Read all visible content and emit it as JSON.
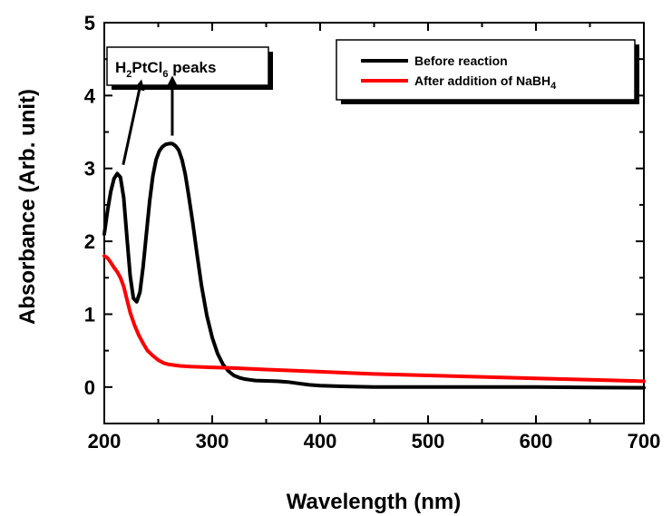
{
  "chart_data": {
    "type": "line",
    "xlabel": "Wavelength (nm)",
    "ylabel": "Absorbance (Arb. unit)",
    "xlim": [
      200,
      700
    ],
    "ylim": [
      -0.5,
      5
    ],
    "xticks": [
      200,
      300,
      400,
      500,
      600,
      700
    ],
    "yticks": [
      0,
      1,
      2,
      3,
      4,
      5
    ],
    "grid": false,
    "legend_position": "top-right",
    "series": [
      {
        "name": "Before reaction",
        "color": "#000000",
        "x": [
          200,
          203,
          206,
          209,
          212,
          215,
          218,
          221,
          224,
          227,
          230,
          233,
          236,
          239,
          242,
          245,
          248,
          251,
          254,
          257,
          260,
          263,
          266,
          269,
          272,
          275,
          278,
          282,
          286,
          290,
          295,
          300,
          305,
          310,
          315,
          320,
          325,
          330,
          335,
          340,
          350,
          360,
          370,
          380,
          390,
          400,
          420,
          450,
          500,
          550,
          600,
          650,
          700
        ],
        "y": [
          2.1,
          2.42,
          2.68,
          2.86,
          2.93,
          2.88,
          2.6,
          2.05,
          1.52,
          1.22,
          1.17,
          1.3,
          1.65,
          2.1,
          2.55,
          2.9,
          3.12,
          3.24,
          3.3,
          3.33,
          3.34,
          3.34,
          3.31,
          3.25,
          3.12,
          2.92,
          2.65,
          2.25,
          1.82,
          1.4,
          0.98,
          0.68,
          0.46,
          0.31,
          0.22,
          0.16,
          0.13,
          0.11,
          0.1,
          0.09,
          0.085,
          0.08,
          0.07,
          0.05,
          0.03,
          0.02,
          0.01,
          0.0,
          0.0,
          0.0,
          0.0,
          -0.005,
          -0.01
        ]
      },
      {
        "name": "After addition of NaBH",
        "name_subscript": "4",
        "color": "#ff0000",
        "x": [
          200,
          203,
          206,
          209,
          212,
          215,
          218,
          221,
          224,
          228,
          232,
          236,
          240,
          245,
          250,
          255,
          260,
          270,
          280,
          300,
          320,
          350,
          400,
          450,
          500,
          550,
          600,
          650,
          700
        ],
        "y": [
          1.8,
          1.77,
          1.71,
          1.64,
          1.58,
          1.5,
          1.38,
          1.2,
          1.02,
          0.85,
          0.71,
          0.6,
          0.5,
          0.43,
          0.37,
          0.33,
          0.31,
          0.29,
          0.28,
          0.27,
          0.26,
          0.24,
          0.21,
          0.18,
          0.16,
          0.14,
          0.12,
          0.1,
          0.08
        ]
      }
    ],
    "annotations": [
      {
        "text": "H",
        "sub1": "2",
        "mid": "PtCl",
        "sub2": "6",
        "tail": " peaks",
        "arrows_to_x": [
          215,
          263
        ]
      }
    ]
  }
}
